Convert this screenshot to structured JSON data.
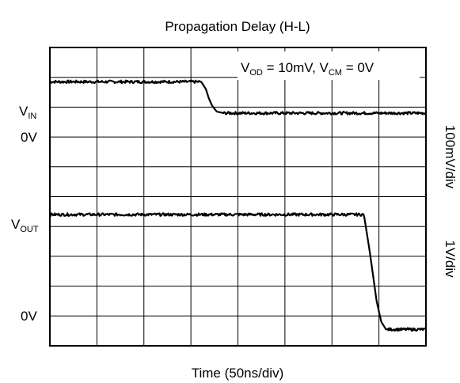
{
  "chart_data": {
    "type": "line",
    "title": "Propagation Delay (H-L)",
    "xlabel": "Time (50ns/div)",
    "x_divisions": 8,
    "y_divisions": 10,
    "grid": true,
    "annotation": {
      "v1": "V",
      "v1_sub": "OD",
      "v1_rest": " = 10mV, V",
      "v2_sub": "CM",
      "v2_rest": " = 0V"
    },
    "left_labels": {
      "vin": "V",
      "vin_sub": "IN",
      "vin_zero": "0V",
      "vout": "V",
      "vout_sub": "OUT",
      "vout_zero": "0V"
    },
    "right_labels": {
      "vin_scale": "100mV/div",
      "vout_scale": "1V/div"
    },
    "series": [
      {
        "name": "VIN",
        "x_div": [
          0,
          3.22,
          3.32,
          3.38,
          3.45,
          3.55,
          3.7,
          10
        ],
        "y_div": [
          8.85,
          8.85,
          8.6,
          8.3,
          8.05,
          7.85,
          7.8,
          7.8
        ]
      },
      {
        "name": "VOUT",
        "x_div": [
          0,
          6.68,
          6.72,
          6.8,
          6.88,
          6.95,
          7.05,
          7.15,
          10
        ],
        "y_div": [
          4.4,
          4.4,
          4.0,
          3.2,
          2.3,
          1.5,
          0.8,
          0.55,
          0.55
        ]
      }
    ]
  }
}
